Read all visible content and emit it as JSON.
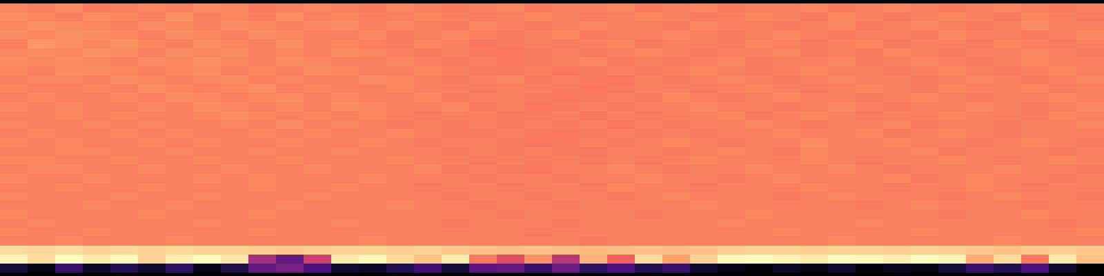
{
  "chart_data": {
    "type": "heatmap",
    "color": "magma",
    "tick_labels": false,
    "values": [
      [
        0.73,
        0.72,
        0.74,
        0.71,
        0.72,
        0.73,
        0.72,
        0.74,
        0.73,
        0.71,
        0.72,
        0.73,
        0.72,
        0.71,
        0.73,
        0.72,
        0.71,
        0.72,
        0.73,
        0.71,
        0.72,
        0.72,
        0.73,
        0.71,
        0.72,
        0.73,
        0.71,
        0.72,
        0.72,
        0.73,
        0.71,
        0.72,
        0.73,
        0.72,
        0.71,
        0.72,
        0.73,
        0.72,
        0.71,
        0.72
      ],
      [
        0.74,
        0.73,
        0.72,
        0.74,
        0.73,
        0.72,
        0.75,
        0.72,
        0.73,
        0.72,
        0.74,
        0.72,
        0.73,
        0.72,
        0.72,
        0.73,
        0.72,
        0.71,
        0.72,
        0.73,
        0.72,
        0.71,
        0.72,
        0.73,
        0.72,
        0.71,
        0.72,
        0.73,
        0.72,
        0.71,
        0.73,
        0.72,
        0.71,
        0.72,
        0.73,
        0.72,
        0.71,
        0.73,
        0.72,
        0.71
      ],
      [
        0.73,
        0.75,
        0.74,
        0.73,
        0.72,
        0.74,
        0.73,
        0.72,
        0.74,
        0.73,
        0.72,
        0.73,
        0.74,
        0.72,
        0.73,
        0.72,
        0.71,
        0.73,
        0.72,
        0.71,
        0.72,
        0.73,
        0.72,
        0.72,
        0.71,
        0.73,
        0.72,
        0.72,
        0.71,
        0.72,
        0.73,
        0.71,
        0.72,
        0.73,
        0.72,
        0.71,
        0.72,
        0.74,
        0.72,
        0.72
      ],
      [
        0.74,
        0.73,
        0.75,
        0.74,
        0.73,
        0.72,
        0.74,
        0.73,
        0.72,
        0.74,
        0.73,
        0.72,
        0.72,
        0.73,
        0.71,
        0.72,
        0.73,
        0.72,
        0.71,
        0.72,
        0.73,
        0.71,
        0.72,
        0.72,
        0.73,
        0.72,
        0.71,
        0.72,
        0.73,
        0.72,
        0.71,
        0.72,
        0.72,
        0.71,
        0.73,
        0.72,
        0.72,
        0.71,
        0.72,
        0.73
      ],
      [
        0.72,
        0.76,
        0.74,
        0.73,
        0.75,
        0.73,
        0.72,
        0.74,
        0.73,
        0.72,
        0.74,
        0.72,
        0.73,
        0.72,
        0.71,
        0.73,
        0.72,
        0.7,
        0.71,
        0.72,
        0.71,
        0.72,
        0.73,
        0.71,
        0.72,
        0.72,
        0.71,
        0.73,
        0.72,
        0.71,
        0.72,
        0.73,
        0.71,
        0.72,
        0.72,
        0.71,
        0.73,
        0.72,
        0.71,
        0.72
      ],
      [
        0.73,
        0.74,
        0.73,
        0.75,
        0.74,
        0.72,
        0.74,
        0.73,
        0.74,
        0.72,
        0.73,
        0.72,
        0.74,
        0.73,
        0.72,
        0.71,
        0.72,
        0.71,
        0.7,
        0.71,
        0.72,
        0.71,
        0.72,
        0.73,
        0.72,
        0.71,
        0.72,
        0.72,
        0.73,
        0.71,
        0.72,
        0.71,
        0.73,
        0.72,
        0.71,
        0.72,
        0.72,
        0.73,
        0.72,
        0.71
      ],
      [
        0.74,
        0.73,
        0.74,
        0.73,
        0.72,
        0.74,
        0.73,
        0.75,
        0.73,
        0.72,
        0.74,
        0.73,
        0.72,
        0.72,
        0.73,
        0.72,
        0.71,
        0.72,
        0.7,
        0.71,
        0.72,
        0.73,
        0.71,
        0.72,
        0.71,
        0.72,
        0.73,
        0.71,
        0.72,
        0.72,
        0.73,
        0.71,
        0.72,
        0.73,
        0.72,
        0.71,
        0.72,
        0.73,
        0.72,
        0.72
      ],
      [
        0.73,
        0.72,
        0.74,
        0.74,
        0.73,
        0.72,
        0.73,
        0.74,
        0.72,
        0.73,
        0.72,
        0.74,
        0.73,
        0.72,
        0.72,
        0.73,
        0.72,
        0.71,
        0.71,
        0.72,
        0.7,
        0.71,
        0.72,
        0.71,
        0.72,
        0.73,
        0.72,
        0.71,
        0.72,
        0.73,
        0.72,
        0.72,
        0.71,
        0.72,
        0.73,
        0.72,
        0.71,
        0.72,
        0.73,
        0.72
      ],
      [
        0.72,
        0.73,
        0.73,
        0.72,
        0.74,
        0.73,
        0.72,
        0.73,
        0.74,
        0.72,
        0.73,
        0.72,
        0.72,
        0.74,
        0.73,
        0.72,
        0.71,
        0.72,
        0.73,
        0.71,
        0.72,
        0.71,
        0.7,
        0.72,
        0.71,
        0.72,
        0.73,
        0.72,
        0.71,
        0.72,
        0.73,
        0.72,
        0.72,
        0.71,
        0.72,
        0.73,
        0.72,
        0.71,
        0.72,
        0.73
      ],
      [
        0.73,
        0.72,
        0.72,
        0.73,
        0.72,
        0.74,
        0.73,
        0.72,
        0.73,
        0.74,
        0.72,
        0.73,
        0.72,
        0.72,
        0.73,
        0.72,
        0.72,
        0.71,
        0.72,
        0.72,
        0.71,
        0.7,
        0.71,
        0.72,
        0.72,
        0.71,
        0.72,
        0.73,
        0.72,
        0.71,
        0.72,
        0.73,
        0.72,
        0.71,
        0.73,
        0.72,
        0.72,
        0.73,
        0.71,
        0.72
      ],
      [
        0.72,
        0.73,
        0.72,
        0.72,
        0.73,
        0.72,
        0.74,
        0.73,
        0.72,
        0.73,
        0.74,
        0.72,
        0.73,
        0.72,
        0.72,
        0.73,
        0.71,
        0.72,
        0.72,
        0.71,
        0.7,
        0.71,
        0.72,
        0.71,
        0.73,
        0.72,
        0.71,
        0.72,
        0.73,
        0.72,
        0.72,
        0.71,
        0.72,
        0.73,
        0.72,
        0.71,
        0.72,
        0.72,
        0.73,
        0.72
      ],
      [
        0.73,
        0.72,
        0.73,
        0.72,
        0.72,
        0.73,
        0.72,
        0.74,
        0.73,
        0.72,
        0.73,
        0.72,
        0.74,
        0.73,
        0.72,
        0.72,
        0.73,
        0.71,
        0.72,
        0.7,
        0.71,
        0.72,
        0.71,
        0.72,
        0.72,
        0.73,
        0.72,
        0.72,
        0.71,
        0.72,
        0.73,
        0.72,
        0.71,
        0.72,
        0.72,
        0.73,
        0.72,
        0.71,
        0.72,
        0.73
      ],
      [
        0.72,
        0.72,
        0.73,
        0.72,
        0.73,
        0.72,
        0.72,
        0.73,
        0.74,
        0.73,
        0.72,
        0.73,
        0.72,
        0.73,
        0.72,
        0.71,
        0.72,
        0.72,
        0.71,
        0.71,
        0.72,
        0.7,
        0.72,
        0.71,
        0.72,
        0.72,
        0.73,
        0.71,
        0.72,
        0.73,
        0.72,
        0.71,
        0.72,
        0.72,
        0.73,
        0.72,
        0.72,
        0.71,
        0.73,
        0.72
      ],
      [
        0.73,
        0.72,
        0.72,
        0.73,
        0.72,
        0.73,
        0.72,
        0.72,
        0.73,
        0.72,
        0.74,
        0.72,
        0.73,
        0.72,
        0.71,
        0.72,
        0.71,
        0.72,
        0.71,
        0.72,
        0.71,
        0.72,
        0.7,
        0.72,
        0.71,
        0.72,
        0.72,
        0.73,
        0.72,
        0.71,
        0.72,
        0.72,
        0.73,
        0.71,
        0.72,
        0.72,
        0.71,
        0.72,
        0.72,
        0.73
      ],
      [
        0.72,
        0.73,
        0.72,
        0.72,
        0.73,
        0.72,
        0.73,
        0.72,
        0.72,
        0.73,
        0.72,
        0.73,
        0.72,
        0.72,
        0.73,
        0.72,
        0.71,
        0.71,
        0.72,
        0.71,
        0.7,
        0.71,
        0.72,
        0.71,
        0.72,
        0.71,
        0.72,
        0.72,
        0.73,
        0.72,
        0.72,
        0.73,
        0.71,
        0.72,
        0.73,
        0.72,
        0.71,
        0.72,
        0.72,
        0.72
      ],
      [
        0.73,
        0.72,
        0.73,
        0.72,
        0.72,
        0.73,
        0.72,
        0.73,
        0.72,
        0.72,
        0.73,
        0.72,
        0.72,
        0.73,
        0.72,
        0.71,
        0.72,
        0.72,
        0.71,
        0.7,
        0.71,
        0.72,
        0.71,
        0.72,
        0.73,
        0.72,
        0.71,
        0.72,
        0.72,
        0.74,
        0.72,
        0.72,
        0.73,
        0.72,
        0.72,
        0.71,
        0.72,
        0.73,
        0.72,
        0.71
      ],
      [
        0.72,
        0.72,
        0.73,
        0.73,
        0.72,
        0.72,
        0.73,
        0.72,
        0.72,
        0.73,
        0.72,
        0.72,
        0.73,
        0.72,
        0.72,
        0.72,
        0.71,
        0.72,
        0.71,
        0.72,
        0.71,
        0.7,
        0.72,
        0.72,
        0.71,
        0.72,
        0.73,
        0.72,
        0.71,
        0.73,
        0.72,
        0.72,
        0.72,
        0.73,
        0.71,
        0.72,
        0.72,
        0.72,
        0.71,
        0.72
      ],
      [
        0.73,
        0.73,
        0.72,
        0.72,
        0.73,
        0.72,
        0.72,
        0.73,
        0.72,
        0.72,
        0.73,
        0.72,
        0.72,
        0.72,
        0.73,
        0.72,
        0.72,
        0.71,
        0.72,
        0.71,
        0.72,
        0.71,
        0.72,
        0.71,
        0.72,
        0.73,
        0.72,
        0.72,
        0.72,
        0.73,
        0.72,
        0.71,
        0.72,
        0.72,
        0.73,
        0.72,
        0.71,
        0.72,
        0.73,
        0.72
      ],
      [
        0.72,
        0.73,
        0.73,
        0.72,
        0.72,
        0.73,
        0.72,
        0.72,
        0.73,
        0.72,
        0.72,
        0.73,
        0.72,
        0.72,
        0.72,
        0.73,
        0.71,
        0.72,
        0.71,
        0.7,
        0.72,
        0.72,
        0.73,
        0.72,
        0.71,
        0.72,
        0.72,
        0.73,
        0.72,
        0.72,
        0.73,
        0.72,
        0.71,
        0.72,
        0.72,
        0.72,
        0.73,
        0.72,
        0.72,
        0.71
      ],
      [
        0.73,
        0.72,
        0.72,
        0.73,
        0.72,
        0.72,
        0.72,
        0.73,
        0.72,
        0.73,
        0.72,
        0.72,
        0.72,
        0.73,
        0.72,
        0.72,
        0.72,
        0.71,
        0.72,
        0.72,
        0.71,
        0.72,
        0.72,
        0.73,
        0.72,
        0.72,
        0.71,
        0.72,
        0.73,
        0.72,
        0.72,
        0.72,
        0.73,
        0.71,
        0.72,
        0.73,
        0.72,
        0.72,
        0.71,
        0.72
      ],
      [
        0.72,
        0.72,
        0.73,
        0.72,
        0.72,
        0.73,
        0.72,
        0.72,
        0.72,
        0.73,
        0.72,
        0.72,
        0.73,
        0.72,
        0.72,
        0.71,
        0.72,
        0.72,
        0.71,
        0.72,
        0.72,
        0.71,
        0.73,
        0.72,
        0.72,
        0.71,
        0.72,
        0.72,
        0.72,
        0.73,
        0.72,
        0.72,
        0.71,
        0.72,
        0.72,
        0.73,
        0.72,
        0.71,
        0.72,
        0.72
      ],
      [
        0.73,
        0.72,
        0.72,
        0.72,
        0.73,
        0.72,
        0.72,
        0.73,
        0.72,
        0.72,
        0.72,
        0.73,
        0.72,
        0.72,
        0.72,
        0.72,
        0.71,
        0.72,
        0.72,
        0.71,
        0.72,
        0.72,
        0.71,
        0.72,
        0.73,
        0.72,
        0.72,
        0.72,
        0.71,
        0.72,
        0.73,
        0.72,
        0.72,
        0.72,
        0.71,
        0.72,
        0.73,
        0.72,
        0.72,
        0.71
      ],
      [
        0.72,
        0.72,
        0.72,
        0.73,
        0.72,
        0.72,
        0.73,
        0.72,
        0.72,
        0.72,
        0.73,
        0.72,
        0.72,
        0.72,
        0.73,
        0.72,
        0.72,
        0.71,
        0.72,
        0.72,
        0.71,
        0.72,
        0.72,
        0.72,
        0.72,
        0.73,
        0.72,
        0.72,
        0.72,
        0.72,
        0.72,
        0.71,
        0.72,
        0.73,
        0.72,
        0.72,
        0.72,
        0.71,
        0.72,
        0.72
      ],
      [
        0.73,
        0.72,
        0.72,
        0.72,
        0.72,
        0.73,
        0.72,
        0.72,
        0.72,
        0.73,
        0.72,
        0.72,
        0.72,
        0.72,
        0.72,
        0.72,
        0.72,
        0.72,
        0.71,
        0.72,
        0.72,
        0.72,
        0.72,
        0.71,
        0.72,
        0.72,
        0.72,
        0.73,
        0.72,
        0.72,
        0.72,
        0.72,
        0.72,
        0.72,
        0.71,
        0.72,
        0.72,
        0.73,
        0.72,
        0.72
      ],
      [
        0.72,
        0.73,
        0.72,
        0.72,
        0.72,
        0.72,
        0.72,
        0.73,
        0.72,
        0.72,
        0.72,
        0.72,
        0.73,
        0.72,
        0.72,
        0.72,
        0.71,
        0.72,
        0.72,
        0.72,
        0.71,
        0.72,
        0.72,
        0.72,
        0.72,
        0.72,
        0.73,
        0.72,
        0.72,
        0.72,
        0.72,
        0.73,
        0.72,
        0.72,
        0.72,
        0.72,
        0.72,
        0.72,
        0.71,
        0.72
      ],
      [
        0.73,
        0.72,
        0.72,
        0.73,
        0.72,
        0.72,
        0.72,
        0.72,
        0.72,
        0.73,
        0.72,
        0.72,
        0.72,
        0.72,
        0.72,
        0.72,
        0.72,
        0.72,
        0.72,
        0.71,
        0.72,
        0.72,
        0.72,
        0.72,
        0.72,
        0.72,
        0.72,
        0.72,
        0.73,
        0.72,
        0.72,
        0.72,
        0.72,
        0.73,
        0.72,
        0.72,
        0.72,
        0.72,
        0.72,
        0.73
      ],
      [
        0.72,
        0.72,
        0.73,
        0.72,
        0.72,
        0.72,
        0.73,
        0.72,
        0.72,
        0.72,
        0.72,
        0.72,
        0.72,
        0.73,
        0.72,
        0.72,
        0.72,
        0.72,
        0.72,
        0.72,
        0.72,
        0.71,
        0.72,
        0.72,
        0.72,
        0.72,
        0.72,
        0.72,
        0.72,
        0.72,
        0.73,
        0.72,
        0.72,
        0.72,
        0.72,
        0.72,
        0.73,
        0.72,
        0.72,
        0.72
      ],
      [
        0.9,
        0.89,
        0.9,
        0.88,
        0.89,
        0.88,
        0.89,
        0.88,
        0.88,
        0.87,
        0.86,
        0.87,
        0.88,
        0.88,
        0.87,
        0.88,
        0.86,
        0.85,
        0.84,
        0.85,
        0.84,
        0.83,
        0.84,
        0.85,
        0.84,
        0.85,
        0.87,
        0.88,
        0.88,
        0.87,
        0.88,
        0.88,
        0.87,
        0.88,
        0.87,
        0.86,
        0.85,
        0.86,
        0.87,
        0.86
      ],
      [
        0.95,
        0.9,
        0.97,
        0.93,
        0.96,
        0.88,
        0.94,
        0.97,
        0.92,
        0.45,
        0.3,
        0.55,
        0.93,
        0.96,
        0.9,
        0.85,
        0.94,
        0.7,
        0.6,
        0.75,
        0.5,
        0.82,
        0.65,
        0.9,
        0.78,
        0.88,
        0.96,
        0.97,
        0.95,
        0.93,
        0.97,
        0.96,
        0.94,
        0.97,
        0.95,
        0.8,
        0.9,
        0.7,
        0.93,
        0.85
      ],
      [
        0.12,
        0.05,
        0.2,
        0.08,
        0.15,
        0.1,
        0.18,
        0.06,
        0.14,
        0.3,
        0.35,
        0.25,
        0.1,
        0.08,
        0.15,
        0.22,
        0.12,
        0.28,
        0.3,
        0.2,
        0.32,
        0.18,
        0.25,
        0.15,
        0.2,
        0.1,
        0.06,
        0.04,
        0.08,
        0.05,
        0.1,
        0.03,
        0.07,
        0.05,
        0.12,
        0.2,
        0.15,
        0.25,
        0.1,
        0.02
      ]
    ]
  }
}
